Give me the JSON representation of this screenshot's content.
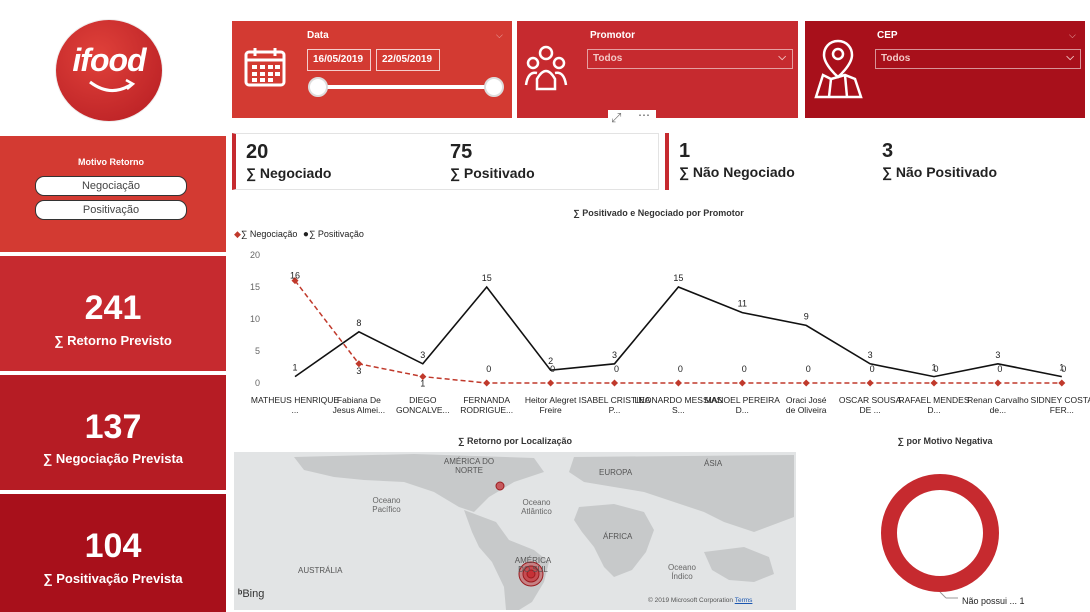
{
  "logo": {
    "text": "ifood"
  },
  "date_slicer": {
    "title": "Data",
    "start": "16/05/2019",
    "end": "22/05/2019"
  },
  "promotor_slicer": {
    "title": "Promotor",
    "value": "Todos"
  },
  "cep_slicer": {
    "title": "CEP",
    "value": "Todos"
  },
  "motivo": {
    "title": "Motivo Retorno",
    "options": [
      "Negociação",
      "Positivação"
    ]
  },
  "cards": [
    {
      "value": "241",
      "label": "∑ Retorno Previsto"
    },
    {
      "value": "137",
      "label": "∑ Negociação Prevista"
    },
    {
      "value": "104",
      "label": "∑ Positivação Prevista"
    }
  ],
  "kpis": [
    {
      "value": "20",
      "label": "∑ Negociado"
    },
    {
      "value": "75",
      "label": "∑ Positivado"
    },
    {
      "value": "1",
      "label": "∑ Não Negociado"
    },
    {
      "value": "3",
      "label": "∑ Não Positivado"
    }
  ],
  "colors": {
    "red": "#c62a2f",
    "negociacao_line": "#c0392b",
    "positivacao_line": "#111111"
  },
  "chart_data": {
    "type": "line",
    "title": "∑ Positivado e Negociado por Promotor",
    "categories": [
      "MATHEUS HENRIQUE ...",
      "Fabiana De Jesus Almei...",
      "DIEGO GONCALVE...",
      "FERNANDA RODRIGUE...",
      "Heitor Alegret Freire",
      "ISABEL CRISTINA P...",
      "LEONARDO MESSIAS S...",
      "MANOEL PEREIRA D...",
      "Oraci José de Oliveira",
      "OSCAR SOUSA DE ...",
      "RAFAEL MENDES D...",
      "Renan Carvalho de...",
      "SIDNEY COSTA FER..."
    ],
    "series": [
      {
        "name": "∑ Negociação",
        "values": [
          16,
          3,
          1,
          0,
          0,
          0,
          0,
          0,
          0,
          0,
          0,
          0,
          0
        ]
      },
      {
        "name": "∑ Positivação",
        "values": [
          1,
          8,
          3,
          15,
          2,
          3,
          15,
          11,
          9,
          3,
          1,
          3,
          1
        ]
      }
    ],
    "yticks": [
      "0",
      "5",
      "10",
      "15",
      "20"
    ],
    "ylim": [
      0,
      20
    ],
    "legend": "top-left"
  },
  "map": {
    "title": "∑ Retorno por Localização",
    "labels": {
      "na": "AMÉRICA DO NORTE",
      "eu": "EUROPA",
      "asia": "ÁSIA",
      "pac": "Oceano Pacífico",
      "atl": "Oceano Atlântico",
      "af": "ÁFRICA",
      "sa": "AMÉRICA DO SUL",
      "ind": "Oceano Índico",
      "aus": "AUSTRÁLIA"
    },
    "bing": "Bing",
    "copyright": "© 2019 Microsoft Corporation",
    "terms": "Terms"
  },
  "donut": {
    "title": "∑ por Motivo Negativa",
    "legend": "Não possui ... 1"
  }
}
